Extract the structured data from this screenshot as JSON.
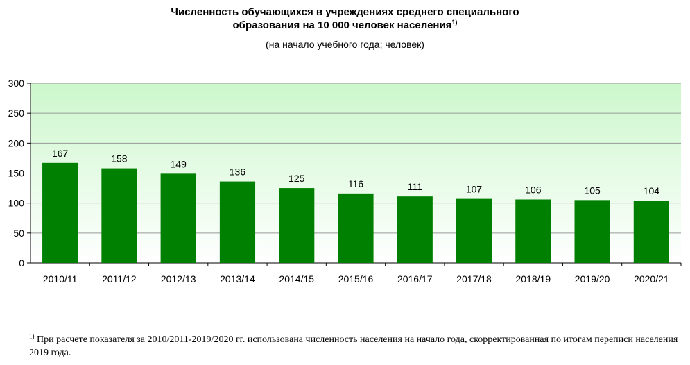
{
  "title": {
    "line1": "Численность обучающихся в учреждениях среднего специального",
    "line2": "образования на 10 000 человек населения",
    "note_mark": "1)"
  },
  "subtitle": "(на начало учебного года; человек)",
  "footnote": {
    "mark": "1)",
    "text": "При расчете показателя за 2010/2011-2019/2020 гг. использована численность населения на начало года, скорректированная по итогам переписи населения 2019 года."
  },
  "colors": {
    "bar": "#008000",
    "plot_gradient_top": "#ccf7cc",
    "plot_gradient_bottom": "#ffffff",
    "gridline": "#9a9a9a",
    "axis": "#000000"
  },
  "chart_data": {
    "type": "bar",
    "categories": [
      "2010/11",
      "2011/12",
      "2012/13",
      "2013/14",
      "2014/15",
      "2015/16",
      "2016/17",
      "2017/18",
      "2018/19",
      "2019/20",
      "2020/21"
    ],
    "values": [
      167,
      158,
      149,
      136,
      125,
      116,
      111,
      107,
      106,
      105,
      104
    ],
    "ylim": [
      0,
      300
    ],
    "yticks": [
      0,
      50,
      100,
      150,
      200,
      250,
      300
    ],
    "xlabel": "",
    "ylabel": "",
    "grid": true,
    "data_labels": true
  }
}
